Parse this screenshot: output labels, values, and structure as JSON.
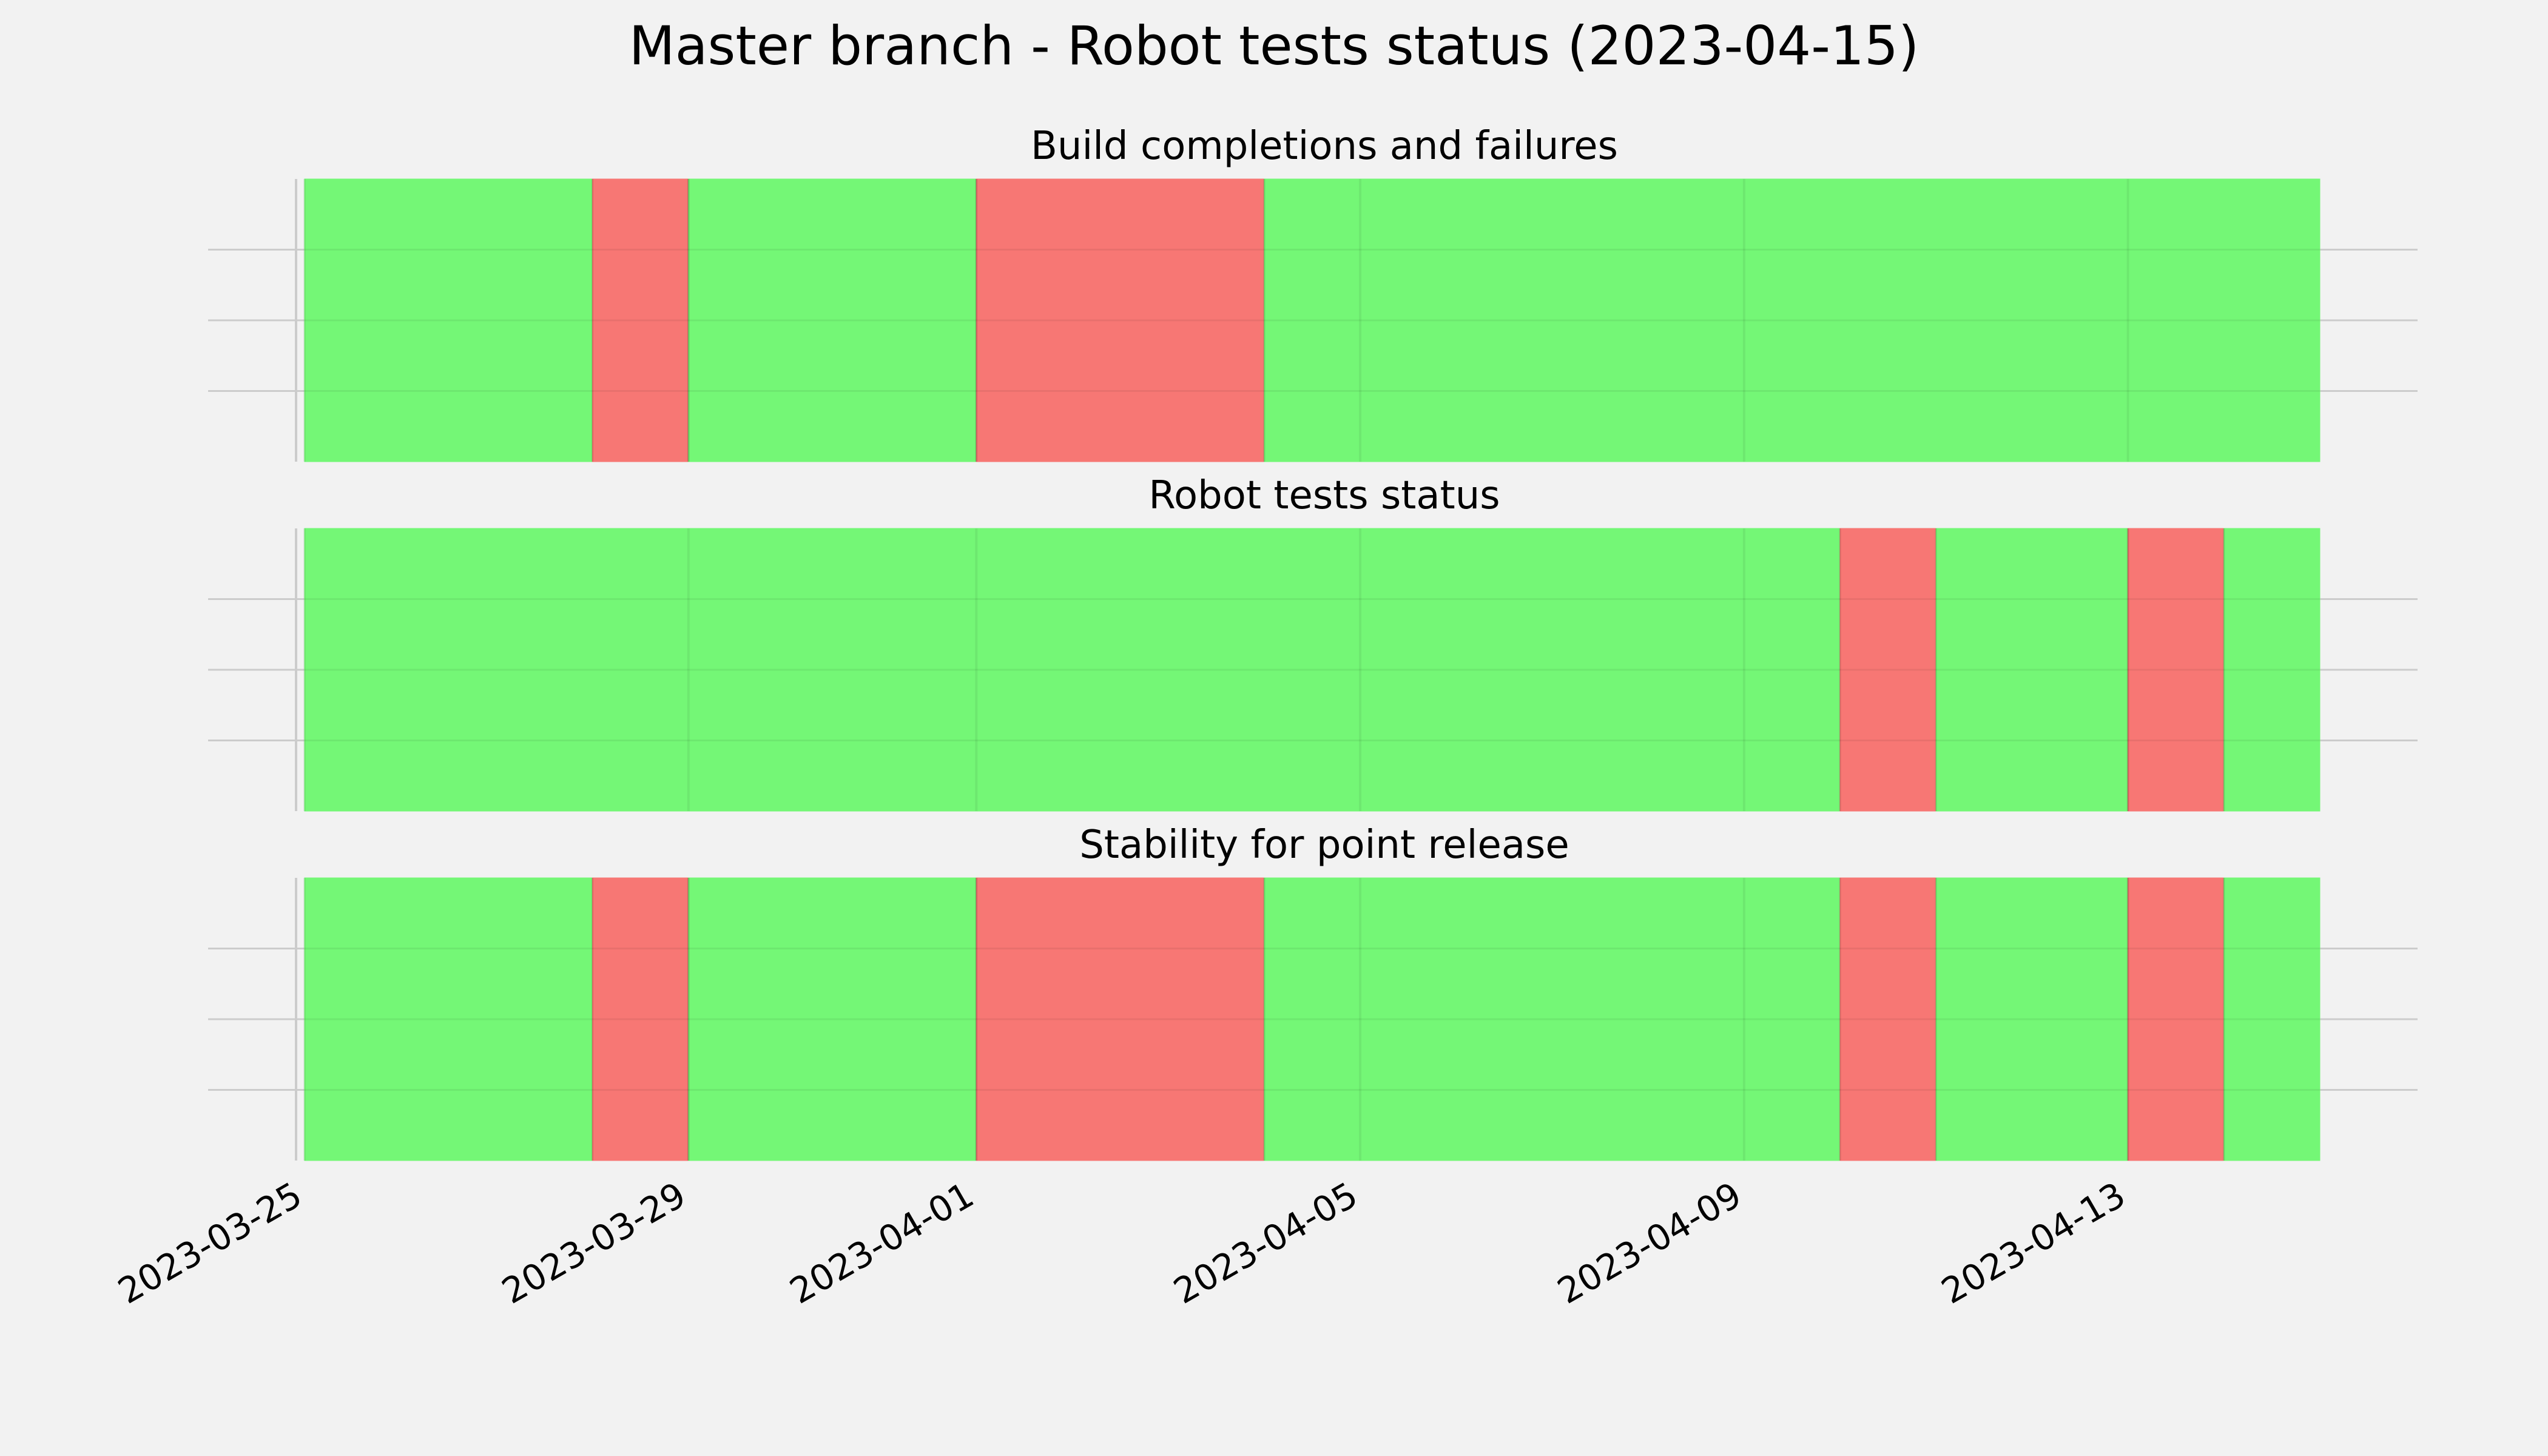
{
  "chart_data": {
    "type": "status-timeline",
    "title": "Master branch - Robot tests status (2023-04-15)",
    "colors": {
      "pass": "#74f776",
      "fail": "#f77774",
      "background": "#f2f2f2",
      "grid": "#cccccc"
    },
    "x_axis": {
      "range": [
        "2023-03-25",
        "2023-04-15"
      ],
      "tick_labels": [
        "2023-03-25",
        "2023-03-29",
        "2023-04-01",
        "2023-04-05",
        "2023-04-09",
        "2023-04-13"
      ],
      "grid": true
    },
    "panels": [
      {
        "title": "Build completions and failures",
        "segments": [
          {
            "start": "2023-03-25",
            "end": "2023-03-28",
            "status": "pass"
          },
          {
            "start": "2023-03-28",
            "end": "2023-03-29",
            "status": "fail"
          },
          {
            "start": "2023-03-29",
            "end": "2023-04-01",
            "status": "pass"
          },
          {
            "start": "2023-04-01",
            "end": "2023-04-04",
            "status": "fail"
          },
          {
            "start": "2023-04-04",
            "end": "2023-04-15",
            "status": "pass"
          }
        ]
      },
      {
        "title": "Robot tests status",
        "segments": [
          {
            "start": "2023-03-25",
            "end": "2023-04-10",
            "status": "pass"
          },
          {
            "start": "2023-04-10",
            "end": "2023-04-11",
            "status": "fail"
          },
          {
            "start": "2023-04-11",
            "end": "2023-04-13",
            "status": "pass"
          },
          {
            "start": "2023-04-13",
            "end": "2023-04-14",
            "status": "fail"
          },
          {
            "start": "2023-04-14",
            "end": "2023-04-15",
            "status": "pass"
          }
        ]
      },
      {
        "title": "Stability for point release",
        "segments": [
          {
            "start": "2023-03-25",
            "end": "2023-03-28",
            "status": "pass"
          },
          {
            "start": "2023-03-28",
            "end": "2023-03-29",
            "status": "fail"
          },
          {
            "start": "2023-03-29",
            "end": "2023-04-01",
            "status": "pass"
          },
          {
            "start": "2023-04-01",
            "end": "2023-04-04",
            "status": "fail"
          },
          {
            "start": "2023-04-04",
            "end": "2023-04-10",
            "status": "pass"
          },
          {
            "start": "2023-04-10",
            "end": "2023-04-11",
            "status": "fail"
          },
          {
            "start": "2023-04-11",
            "end": "2023-04-13",
            "status": "pass"
          },
          {
            "start": "2023-04-13",
            "end": "2023-04-14",
            "status": "fail"
          },
          {
            "start": "2023-04-14",
            "end": "2023-04-15",
            "status": "pass"
          }
        ]
      }
    ]
  }
}
